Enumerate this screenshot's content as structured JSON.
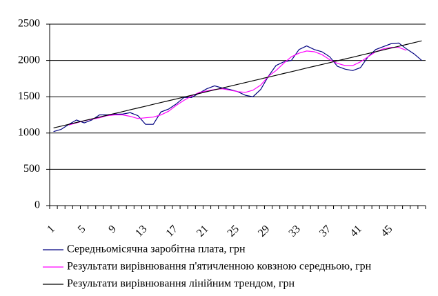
{
  "chart_data": {
    "type": "line",
    "categories": [
      "1",
      null,
      null,
      null,
      "5",
      null,
      null,
      null,
      "9",
      null,
      null,
      null,
      "13",
      null,
      null,
      null,
      "17",
      null,
      null,
      null,
      "21",
      null,
      null,
      null,
      "25",
      null,
      null,
      null,
      "29",
      null,
      null,
      null,
      "33",
      null,
      null,
      null,
      "37",
      null,
      null,
      null,
      "41",
      null,
      null,
      null,
      "45",
      null,
      null,
      null,
      null
    ],
    "series": [
      {
        "name": "Середньомісячна заробітна плата, грн",
        "color": "#000080",
        "values": [
          1020,
          1050,
          1120,
          1180,
          1140,
          1180,
          1250,
          1250,
          1260,
          1260,
          1280,
          1240,
          1120,
          1120,
          1290,
          1330,
          1400,
          1490,
          1490,
          1550,
          1610,
          1650,
          1620,
          1600,
          1570,
          1520,
          1500,
          1600,
          1780,
          1930,
          1980,
          2000,
          2150,
          2200,
          2150,
          2120,
          2050,
          1920,
          1880,
          1860,
          1900,
          2050,
          2150,
          2190,
          2230,
          2240,
          2160,
          2090,
          2000
        ]
      },
      {
        "name": "Результати вирівнювання п'ятичленною ковзною середньою, грн",
        "color": "#ff00ff",
        "values": [
          null,
          null,
          1110,
          1140,
          1170,
          1190,
          1210,
          1240,
          1250,
          1250,
          1230,
          1200,
          1210,
          1220,
          1250,
          1300,
          1380,
          1450,
          1510,
          1560,
          1580,
          1600,
          1610,
          1590,
          1570,
          1560,
          1590,
          1660,
          1780,
          1860,
          1960,
          2050,
          2100,
          2130,
          2120,
          2080,
          2010,
          1960,
          1930,
          1930,
          1980,
          2050,
          2120,
          2160,
          2180,
          2180,
          2140,
          null,
          null
        ]
      },
      {
        "name": "Результати вирівнювання лінійним трендом, грн",
        "color": "#000000",
        "values": [
          1070,
          1095,
          1120,
          1145,
          1170,
          1195,
          1220,
          1245,
          1270,
          1295,
          1320,
          1345,
          1370,
          1395,
          1420,
          1445,
          1470,
          1495,
          1520,
          1545,
          1570,
          1595,
          1620,
          1645,
          1670,
          1695,
          1720,
          1745,
          1770,
          1795,
          1820,
          1845,
          1870,
          1895,
          1920,
          1945,
          1970,
          1995,
          2020,
          2045,
          2070,
          2095,
          2120,
          2145,
          2170,
          2195,
          2220,
          2245,
          2270
        ]
      }
    ],
    "ylim": [
      0,
      2500
    ],
    "yticks": [
      0,
      500,
      1000,
      1500,
      2000,
      2500
    ],
    "grid": true,
    "legend": "bottom-left"
  }
}
